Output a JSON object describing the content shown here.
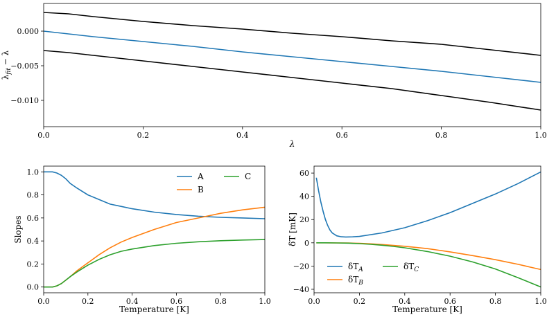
{
  "chart_data": [
    {
      "type": "line",
      "xlabel": "λ",
      "ylabel": "λ_fit − λ",
      "xlim": [
        0,
        1
      ],
      "ylim": [
        -0.0138,
        0.004
      ],
      "xticks": [
        0,
        0.2,
        0.4,
        0.6,
        0.8,
        1.0
      ],
      "xtick_labels": [
        "0.0",
        "0.2",
        "0.4",
        "0.6",
        "0.8",
        "1.0"
      ],
      "yticks": [
        0.0,
        -0.005,
        -0.01
      ],
      "ytick_labels": [
        "0.000",
        "−0.005",
        "−0.010"
      ],
      "grid": false,
      "series": [
        {
          "color": "#000000",
          "x": [
            0,
            0.05,
            0.1,
            0.2,
            0.3,
            0.4,
            0.5,
            0.6,
            0.7,
            0.8,
            0.9,
            1.0
          ],
          "y": [
            0.0027,
            0.0025,
            0.0021,
            0.0014,
            0.0008,
            0.0003,
            -0.0003,
            -0.0008,
            -0.0014,
            -0.0019,
            -0.0027,
            -0.0035
          ]
        },
        {
          "color": "#1f77b4",
          "x": [
            0,
            0.05,
            0.1,
            0.2,
            0.3,
            0.4,
            0.5,
            0.6,
            0.7,
            0.8,
            0.9,
            1.0
          ],
          "y": [
            0.0,
            -0.0004,
            -0.0008,
            -0.0015,
            -0.0022,
            -0.003,
            -0.0037,
            -0.0044,
            -0.0051,
            -0.0058,
            -0.0066,
            -0.0074
          ]
        },
        {
          "color": "#000000",
          "x": [
            0,
            0.05,
            0.1,
            0.2,
            0.3,
            0.4,
            0.5,
            0.6,
            0.7,
            0.8,
            0.9,
            1.0
          ],
          "y": [
            -0.0028,
            -0.0031,
            -0.0035,
            -0.0043,
            -0.0051,
            -0.0059,
            -0.0067,
            -0.0075,
            -0.0083,
            -0.0093,
            -0.0103,
            -0.0114
          ]
        }
      ]
    },
    {
      "type": "line",
      "xlabel": "Temperature [K]",
      "ylabel": "Slopes",
      "xlim": [
        0,
        1
      ],
      "ylim": [
        -0.05,
        1.05
      ],
      "xticks": [
        0,
        0.2,
        0.4,
        0.6,
        0.8,
        1.0
      ],
      "xtick_labels": [
        "0.0",
        "0.2",
        "0.4",
        "0.6",
        "0.8",
        "1.0"
      ],
      "yticks": [
        0,
        0.2,
        0.4,
        0.6,
        0.8,
        1.0
      ],
      "ytick_labels": [
        "0.0",
        "0.2",
        "0.4",
        "0.6",
        "0.8",
        "1.0"
      ],
      "grid": false,
      "legend": {
        "placement": "top-right",
        "columns": 2
      },
      "series": [
        {
          "name": "A",
          "color": "#1f77b4",
          "x": [
            0,
            0.04,
            0.06,
            0.08,
            0.1,
            0.12,
            0.15,
            0.2,
            0.25,
            0.3,
            0.35,
            0.4,
            0.5,
            0.6,
            0.7,
            0.8,
            0.9,
            1.0
          ],
          "y": [
            1.0,
            1.0,
            0.99,
            0.97,
            0.94,
            0.9,
            0.86,
            0.8,
            0.76,
            0.72,
            0.7,
            0.68,
            0.65,
            0.63,
            0.615,
            0.605,
            0.6,
            0.593
          ]
        },
        {
          "name": "B",
          "color": "#ff7f0e",
          "x": [
            0,
            0.04,
            0.06,
            0.08,
            0.1,
            0.12,
            0.15,
            0.2,
            0.25,
            0.3,
            0.35,
            0.4,
            0.5,
            0.6,
            0.7,
            0.8,
            0.9,
            1.0
          ],
          "y": [
            0.0,
            0.0,
            0.01,
            0.03,
            0.06,
            0.09,
            0.14,
            0.21,
            0.28,
            0.34,
            0.39,
            0.43,
            0.5,
            0.56,
            0.6,
            0.64,
            0.67,
            0.693
          ]
        },
        {
          "name": "C",
          "color": "#2ca02c",
          "x": [
            0,
            0.04,
            0.06,
            0.08,
            0.1,
            0.12,
            0.15,
            0.2,
            0.25,
            0.3,
            0.35,
            0.4,
            0.5,
            0.6,
            0.7,
            0.8,
            0.9,
            1.0
          ],
          "y": [
            0.0,
            0.0,
            0.01,
            0.03,
            0.06,
            0.09,
            0.13,
            0.19,
            0.24,
            0.28,
            0.31,
            0.33,
            0.36,
            0.38,
            0.393,
            0.402,
            0.408,
            0.412
          ]
        }
      ]
    },
    {
      "type": "line",
      "xlabel": "Temperature [K]",
      "ylabel": "δT [mK]",
      "xlim": [
        0,
        1
      ],
      "ylim": [
        -43,
        66
      ],
      "xticks": [
        0,
        0.2,
        0.4,
        0.6,
        0.8,
        1.0
      ],
      "xtick_labels": [
        "0.0",
        "0.2",
        "0.4",
        "0.6",
        "0.8",
        "1.0"
      ],
      "yticks": [
        -40,
        -20,
        0,
        20,
        40,
        60
      ],
      "ytick_labels": [
        "−40",
        "−20",
        "0",
        "20",
        "40",
        "60"
      ],
      "grid": false,
      "legend": {
        "placement": "bottom-left",
        "columns": 2
      },
      "series": [
        {
          "name": "δT_A",
          "color": "#1f77b4",
          "x": [
            0.01,
            0.02,
            0.03,
            0.04,
            0.05,
            0.06,
            0.07,
            0.08,
            0.1,
            0.12,
            0.14,
            0.17,
            0.2,
            0.3,
            0.4,
            0.5,
            0.6,
            0.7,
            0.8,
            0.9,
            1.0
          ],
          "y": [
            56,
            45,
            35,
            27,
            20,
            15,
            11,
            8.5,
            6,
            5.2,
            5,
            5.1,
            5.5,
            8.5,
            13,
            19,
            26,
            34,
            42,
            51,
            61
          ]
        },
        {
          "name": "δT_B",
          "color": "#ff7f0e",
          "x": [
            0.01,
            0.05,
            0.1,
            0.15,
            0.2,
            0.25,
            0.3,
            0.35,
            0.4,
            0.5,
            0.6,
            0.7,
            0.8,
            0.9,
            1.0
          ],
          "y": [
            0,
            0,
            -0.1,
            -0.2,
            -0.5,
            -0.9,
            -1.5,
            -2.2,
            -3,
            -5,
            -7.8,
            -11,
            -14.5,
            -18.5,
            -23
          ]
        },
        {
          "name": "δT_C",
          "color": "#2ca02c",
          "x": [
            0.01,
            0.05,
            0.1,
            0.15,
            0.2,
            0.25,
            0.3,
            0.35,
            0.4,
            0.5,
            0.6,
            0.7,
            0.8,
            0.9,
            1.0
          ],
          "y": [
            0,
            0,
            -0.1,
            -0.3,
            -0.7,
            -1.3,
            -2.1,
            -3.1,
            -4.3,
            -7.5,
            -11.5,
            -16.5,
            -22.5,
            -30,
            -38
          ]
        }
      ]
    }
  ]
}
